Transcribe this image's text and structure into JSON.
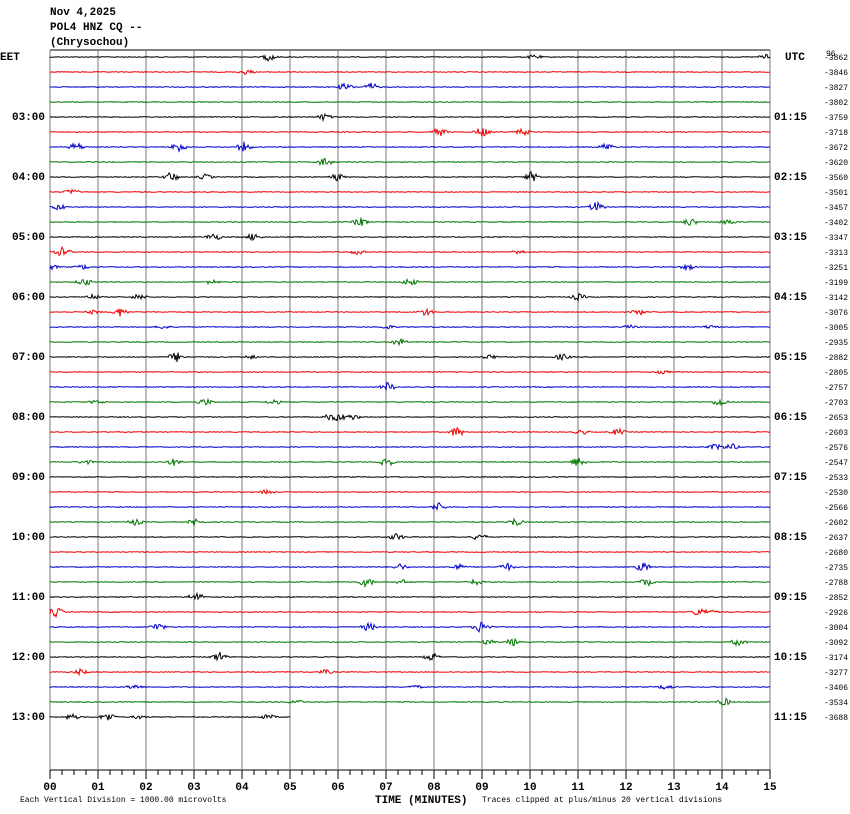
{
  "header": {
    "date": "Nov 4,2025",
    "station": "POL4 HNZ CQ --",
    "location": "(Chrysochou)"
  },
  "left_label": "EET",
  "right_label": "UTC",
  "left_times": [
    "03:00",
    "04:00",
    "05:00",
    "06:00",
    "07:00",
    "08:00",
    "09:00",
    "10:00",
    "11:00",
    "12:00",
    "13:00"
  ],
  "right_times": [
    "01:15",
    "02:15",
    "03:15",
    "04:15",
    "05:15",
    "06:15",
    "07:15",
    "08:15",
    "09:15",
    "10:15",
    "11:15"
  ],
  "offsets_top": "96",
  "offsets": [
    "-3862",
    "-3846",
    "-3827",
    "-3802",
    "-3759",
    "-3718",
    "-3672",
    "-3620",
    "-3560",
    "-3501",
    "-3457",
    "-3402",
    "-3347",
    "-3313",
    "-3251",
    "-3199",
    "-3142",
    "-3076",
    "-3005",
    "-2935",
    "-2882",
    "-2805",
    "-2757",
    "-2703",
    "-2653",
    "-2603",
    "-2576",
    "-2547",
    "-2533",
    "-2530",
    "-2566",
    "-2602",
    "-2637",
    "-2680",
    "-2735",
    "-2788",
    "-2852",
    "-2926",
    "-3004",
    "-3092",
    "-3174",
    "-3277",
    "-3406",
    "-3534",
    "-3688"
  ],
  "x_axis": {
    "ticks": [
      "00",
      "01",
      "02",
      "03",
      "04",
      "05",
      "06",
      "07",
      "08",
      "09",
      "10",
      "11",
      "12",
      "13",
      "14",
      "15"
    ],
    "title": "TIME (MINUTES)"
  },
  "footer": {
    "scale": "Each Vertical Division = 1000.00 microvolts",
    "clip": "Traces clipped at plus/minus 20 vertical divisions"
  }
}
